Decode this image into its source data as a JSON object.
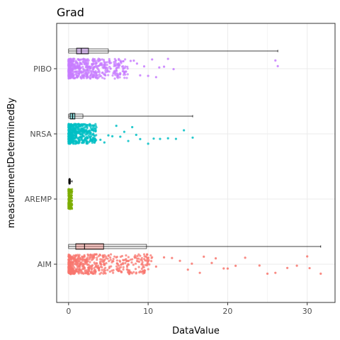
{
  "chart_data": {
    "type": "scatter",
    "title": "Grad",
    "xlabel": "DataValue",
    "ylabel": "measurementDeterminedBy",
    "xlim": [
      -1.5,
      33.5
    ],
    "xticks": [
      0,
      10,
      20,
      30
    ],
    "categories": [
      "AIM",
      "AREMP",
      "NRSA",
      "PIBO"
    ],
    "grid": true,
    "legend": "none",
    "series": [
      {
        "name": "PIBO",
        "color": "#C77CFF",
        "box": {
          "min": 0,
          "q1": 1.0,
          "median": 1.6,
          "q3": 2.5,
          "whisker_high": 5.0,
          "max": 26.3
        },
        "dense_max": 7.5,
        "outliers": [
          7.8,
          8.2,
          8.6,
          9.0,
          9.5,
          10.0,
          10.5,
          11.0,
          11.4,
          12.0,
          12.5,
          13.2,
          26.0,
          26.3
        ]
      },
      {
        "name": "NRSA",
        "color": "#00BFC4",
        "box": {
          "min": 0,
          "q1": 0.2,
          "median": 0.5,
          "q3": 0.8,
          "whisker_high": 1.8,
          "max": 15.6
        },
        "dense_max": 3.5,
        "outliers": [
          4.0,
          4.5,
          5.0,
          5.5,
          6.0,
          6.5,
          7.0,
          7.5,
          8.0,
          8.5,
          9.0,
          10.0,
          10.7,
          11.5,
          12.5,
          13.5,
          14.5,
          15.6
        ]
      },
      {
        "name": "AREMP",
        "color": "#7CAE00",
        "box": {
          "min": 0,
          "q1": 0.05,
          "median": 0.1,
          "q3": 0.15,
          "whisker_high": 0.25,
          "max": 0.45
        },
        "dense_max": 0.45,
        "outliers": []
      },
      {
        "name": "AIM",
        "color": "#F8766D",
        "box": {
          "min": 0,
          "q1": 0.9,
          "median": 2.0,
          "q3": 4.4,
          "whisker_high": 9.8,
          "max": 31.7
        },
        "dense_max": 10.5,
        "outliers": [
          11.0,
          12.0,
          13.0,
          14.0,
          15.0,
          15.5,
          16.5,
          17.0,
          18.0,
          18.5,
          19.5,
          20.0,
          21.0,
          22.2,
          24.0,
          25.0,
          26.0,
          27.5,
          28.7,
          30.0,
          30.3,
          31.7
        ]
      }
    ]
  }
}
